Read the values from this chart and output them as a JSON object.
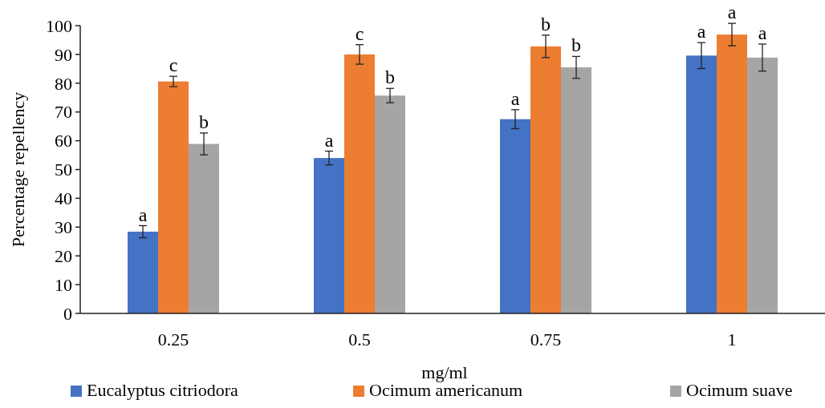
{
  "chart_data": {
    "type": "bar",
    "xlabel": "mg/ml",
    "ylabel": "Percentage repellency",
    "categories": [
      "0.25",
      "0.5",
      "0.75",
      "1"
    ],
    "series": [
      {
        "name": "Eucalyptus citriodora",
        "color": "#4472c4",
        "values": [
          28.4,
          54.0,
          67.5,
          89.6
        ],
        "errors": [
          2.1,
          2.4,
          3.3,
          4.5
        ],
        "value_labels": [
          "a",
          "a",
          "a",
          "a"
        ]
      },
      {
        "name": "Ocimum americanum",
        "color": "#ed7d31",
        "values": [
          80.6,
          90.0,
          92.8,
          96.9
        ],
        "errors": [
          1.8,
          3.4,
          3.9,
          3.9
        ],
        "value_labels": [
          "c",
          "c",
          "b",
          "a"
        ]
      },
      {
        "name": "Ocimum suave",
        "color": "#a5a5a5",
        "values": [
          58.9,
          75.7,
          85.5,
          88.9
        ],
        "errors": [
          3.8,
          2.5,
          3.8,
          4.7
        ],
        "value_labels": [
          "b",
          "b",
          "b",
          "a"
        ]
      }
    ],
    "ylim": [
      0,
      100
    ],
    "yticks": [
      0,
      10,
      20,
      30,
      40,
      50,
      60,
      70,
      80,
      90,
      100
    ],
    "grid": false,
    "legend": "bottom"
  }
}
